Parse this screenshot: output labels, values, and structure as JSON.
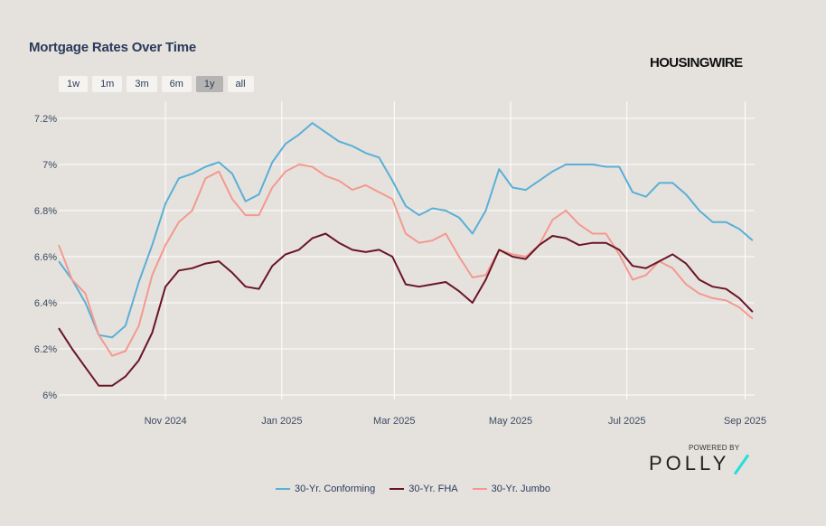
{
  "title": "Mortgage Rates Over Time",
  "range_buttons": [
    {
      "label": "1w",
      "selected": false
    },
    {
      "label": "1m",
      "selected": false
    },
    {
      "label": "3m",
      "selected": false
    },
    {
      "label": "6m",
      "selected": false
    },
    {
      "label": "1y",
      "selected": true
    },
    {
      "label": "all",
      "selected": false
    }
  ],
  "logos": {
    "housingwire": "HOUSINGWIRE",
    "powered_by": "POWERED BY",
    "polly": "POLLY"
  },
  "colors": {
    "background": "#e5e2de",
    "grid": "#ffffff",
    "title": "#2a3a5a"
  },
  "chart_data": {
    "type": "line",
    "title": "Mortgage Rates Over Time",
    "xlabel": "",
    "ylabel": "",
    "xlim": [
      "2024-09-06",
      "2025-09-06"
    ],
    "ylim": [
      5.97,
      7.27
    ],
    "grid": true,
    "legend_position": "bottom",
    "y_ticks": [
      {
        "value": 6.0,
        "label": "6%"
      },
      {
        "value": 6.2,
        "label": "6.2%"
      },
      {
        "value": 6.4,
        "label": "6.4%"
      },
      {
        "value": 6.6,
        "label": "6.6%"
      },
      {
        "value": 6.8,
        "label": "6.8%"
      },
      {
        "value": 7.0,
        "label": "7%"
      },
      {
        "value": 7.2,
        "label": "7.2%"
      }
    ],
    "x_ticks": [
      {
        "date": "2024-11-01",
        "label": "Nov 2024"
      },
      {
        "date": "2025-01-01",
        "label": "Jan 2025"
      },
      {
        "date": "2025-03-01",
        "label": "Mar 2025"
      },
      {
        "date": "2025-05-01",
        "label": "May 2025"
      },
      {
        "date": "2025-07-01",
        "label": "Jul 2025"
      },
      {
        "date": "2025-09-01",
        "label": "Sep 2025"
      }
    ],
    "x": [
      "2024-09-06",
      "2024-09-13",
      "2024-09-20",
      "2024-09-27",
      "2024-10-04",
      "2024-10-11",
      "2024-10-18",
      "2024-10-25",
      "2024-11-01",
      "2024-11-08",
      "2024-11-15",
      "2024-11-22",
      "2024-11-29",
      "2024-12-06",
      "2024-12-13",
      "2024-12-20",
      "2024-12-27",
      "2025-01-03",
      "2025-01-10",
      "2025-01-17",
      "2025-01-24",
      "2025-01-31",
      "2025-02-07",
      "2025-02-14",
      "2025-02-21",
      "2025-02-28",
      "2025-03-07",
      "2025-03-14",
      "2025-03-21",
      "2025-03-28",
      "2025-04-04",
      "2025-04-11",
      "2025-04-18",
      "2025-04-25",
      "2025-05-02",
      "2025-05-09",
      "2025-05-16",
      "2025-05-23",
      "2025-05-30",
      "2025-06-06",
      "2025-06-13",
      "2025-06-20",
      "2025-06-27",
      "2025-07-04",
      "2025-07-11",
      "2025-07-18",
      "2025-07-25",
      "2025-08-01",
      "2025-08-08",
      "2025-08-15",
      "2025-08-22",
      "2025-08-29",
      "2025-09-05"
    ],
    "series": [
      {
        "name": "30-Yr. Conforming",
        "color": "#5aafd6",
        "values": [
          6.58,
          6.5,
          6.4,
          6.26,
          6.25,
          6.3,
          6.49,
          6.65,
          6.83,
          6.94,
          6.96,
          6.99,
          7.01,
          6.96,
          6.84,
          6.87,
          7.01,
          7.09,
          7.13,
          7.18,
          7.14,
          7.1,
          7.08,
          7.05,
          7.03,
          6.93,
          6.82,
          6.78,
          6.81,
          6.8,
          6.77,
          6.7,
          6.8,
          6.98,
          6.9,
          6.89,
          6.93,
          6.97,
          7.0,
          7.0,
          7.0,
          6.99,
          6.99,
          6.88,
          6.86,
          6.92,
          6.92,
          6.87,
          6.8,
          6.75,
          6.75,
          6.72,
          6.67
        ]
      },
      {
        "name": "30-Yr. FHA",
        "color": "#6b1425",
        "values": [
          6.29,
          6.2,
          6.12,
          6.04,
          6.04,
          6.08,
          6.15,
          6.27,
          6.47,
          6.54,
          6.55,
          6.57,
          6.58,
          6.53,
          6.47,
          6.46,
          6.56,
          6.61,
          6.63,
          6.68,
          6.7,
          6.66,
          6.63,
          6.62,
          6.63,
          6.6,
          6.48,
          6.47,
          6.48,
          6.49,
          6.45,
          6.4,
          6.5,
          6.63,
          6.6,
          6.59,
          6.65,
          6.69,
          6.68,
          6.65,
          6.66,
          6.66,
          6.63,
          6.56,
          6.55,
          6.58,
          6.61,
          6.57,
          6.5,
          6.47,
          6.46,
          6.42,
          6.36
        ]
      },
      {
        "name": "30-Yr. Jumbo",
        "color": "#f4998f",
        "values": [
          6.65,
          6.5,
          6.44,
          6.26,
          6.17,
          6.19,
          6.3,
          6.52,
          6.65,
          6.75,
          6.8,
          6.94,
          6.97,
          6.85,
          6.78,
          6.78,
          6.9,
          6.97,
          7.0,
          6.99,
          6.95,
          6.93,
          6.89,
          6.91,
          6.88,
          6.85,
          6.7,
          6.66,
          6.67,
          6.7,
          6.6,
          6.51,
          6.52,
          6.63,
          6.61,
          6.6,
          6.65,
          6.76,
          6.8,
          6.74,
          6.7,
          6.7,
          6.61,
          6.5,
          6.52,
          6.58,
          6.55,
          6.48,
          6.44,
          6.42,
          6.41,
          6.38,
          6.33
        ]
      }
    ]
  }
}
